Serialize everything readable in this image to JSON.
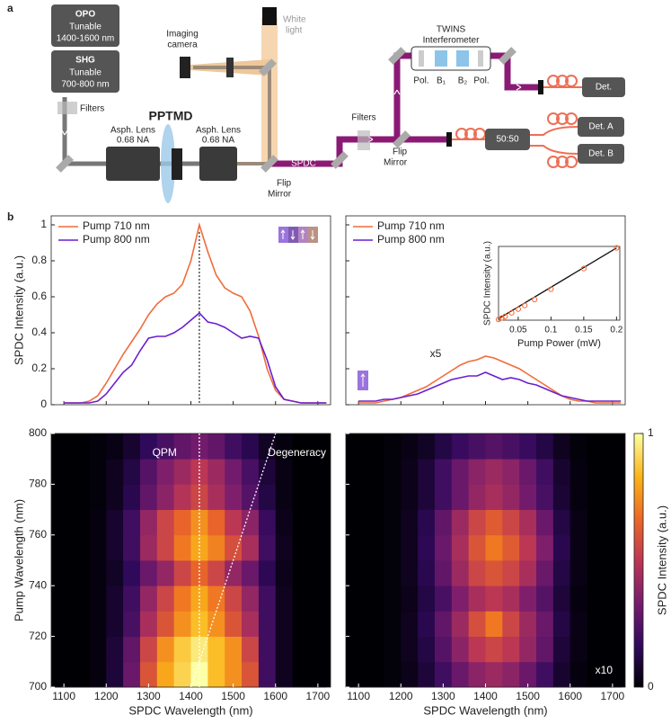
{
  "diagram": {
    "labels": [
      "a",
      "OPO",
      "Tunable",
      "1400-1600 nm",
      "SHG",
      "Tunable",
      "700-800 nm",
      "Filters",
      "Asph. Lens",
      "0.68 NA",
      "PPTMD",
      "Asph. Lens",
      "0.68 NA",
      "Imaging",
      "camera",
      "White",
      "light",
      "Flip",
      "Mirror",
      "SPDC",
      "Filters",
      "Flip",
      "Mirror",
      "TWINS",
      "Interferometer",
      "Pol.",
      "B₁",
      "B₂",
      "Pol.",
      "Det.",
      "50:50",
      "Det. A",
      "Det. B",
      "b"
    ]
  },
  "chart_data": [
    {
      "type": "line",
      "ylabel": "SPDC Intensity (a.u.)",
      "xlim": [
        1070,
        1730
      ],
      "ylim": [
        0,
        1.05
      ],
      "xticks": [
        1100,
        1200,
        1300,
        1400,
        1500,
        1600,
        1700
      ],
      "yticks": [
        0,
        0.2,
        0.4,
        0.6,
        0.8,
        1
      ],
      "x": [
        1100,
        1120,
        1140,
        1160,
        1180,
        1200,
        1220,
        1240,
        1260,
        1280,
        1300,
        1320,
        1340,
        1360,
        1380,
        1400,
        1420,
        1440,
        1460,
        1480,
        1500,
        1520,
        1540,
        1560,
        1580,
        1600,
        1620,
        1640,
        1660,
        1680,
        1700,
        1720
      ],
      "series": [
        {
          "name": "Pump 710 nm",
          "color": "#f26b3a",
          "values": [
            0.01,
            0.01,
            0.01,
            0.02,
            0.05,
            0.12,
            0.2,
            0.28,
            0.35,
            0.42,
            0.5,
            0.56,
            0.6,
            0.62,
            0.67,
            0.8,
            1.0,
            0.85,
            0.72,
            0.65,
            0.62,
            0.6,
            0.52,
            0.38,
            0.2,
            0.08,
            0.03,
            0.02,
            0.01,
            0.01,
            0.01,
            0.01
          ]
        },
        {
          "name": "Pump 800 nm",
          "color": "#6a1fd0",
          "values": [
            0.01,
            0.01,
            0.01,
            0.01,
            0.02,
            0.06,
            0.12,
            0.18,
            0.22,
            0.3,
            0.37,
            0.38,
            0.38,
            0.4,
            0.43,
            0.47,
            0.51,
            0.46,
            0.45,
            0.43,
            0.4,
            0.37,
            0.38,
            0.37,
            0.25,
            0.1,
            0.03,
            0.02,
            0.01,
            0.01,
            0.01,
            0.01
          ]
        }
      ],
      "qpm_line": 1420
    },
    {
      "type": "line",
      "xlim": [
        1070,
        1730
      ],
      "ylim": [
        0,
        1.05
      ],
      "xticks": [
        1100,
        1200,
        1300,
        1400,
        1500,
        1600,
        1700
      ],
      "yticks": [
        0,
        0.2,
        0.4,
        0.6,
        0.8,
        1
      ],
      "x": [
        1100,
        1120,
        1140,
        1160,
        1180,
        1200,
        1220,
        1240,
        1260,
        1280,
        1300,
        1320,
        1340,
        1360,
        1380,
        1400,
        1420,
        1440,
        1460,
        1480,
        1500,
        1520,
        1540,
        1560,
        1580,
        1600,
        1620,
        1640,
        1660,
        1680,
        1700,
        1720
      ],
      "series": [
        {
          "name": "Pump 710 nm",
          "color": "#f26b3a",
          "values": [
            0.01,
            0.01,
            0.01,
            0.02,
            0.03,
            0.04,
            0.06,
            0.08,
            0.1,
            0.13,
            0.16,
            0.19,
            0.22,
            0.24,
            0.25,
            0.27,
            0.26,
            0.24,
            0.22,
            0.2,
            0.17,
            0.14,
            0.11,
            0.08,
            0.05,
            0.03,
            0.02,
            0.02,
            0.01,
            0.01,
            0.01,
            0.01
          ]
        },
        {
          "name": "Pump 800 nm",
          "color": "#6a1fd0",
          "values": [
            0.02,
            0.02,
            0.02,
            0.03,
            0.03,
            0.04,
            0.05,
            0.06,
            0.08,
            0.1,
            0.12,
            0.14,
            0.15,
            0.16,
            0.16,
            0.18,
            0.16,
            0.14,
            0.15,
            0.14,
            0.12,
            0.11,
            0.09,
            0.07,
            0.05,
            0.04,
            0.03,
            0.02,
            0.02,
            0.02,
            0.02,
            0.02
          ]
        }
      ],
      "annotation": "x5"
    },
    {
      "type": "scatter",
      "xlabel": "Pump Power (mW)",
      "ylabel": "SPDC Intensity (a.u.)",
      "xlim": [
        0.02,
        0.205
      ],
      "ylim": [
        0,
        1
      ],
      "xticks": [
        0.05,
        0.1,
        0.15,
        0.2
      ],
      "color": "#f26b3a",
      "x": [
        0.02,
        0.025,
        0.03,
        0.04,
        0.05,
        0.06,
        0.075,
        0.1,
        0.15,
        0.2
      ],
      "values": [
        0.01,
        0.03,
        0.05,
        0.1,
        0.15,
        0.2,
        0.28,
        0.42,
        0.7,
        0.98
      ],
      "fit": {
        "x": [
          0.02,
          0.2
        ],
        "values": [
          0.02,
          0.98
        ]
      }
    },
    {
      "type": "heatmap",
      "xlabel": "SPDC Wavelength (nm)",
      "ylabel": "Pump Wavelength (nm)",
      "xlim": [
        1070,
        1730
      ],
      "ylim": [
        700,
        800
      ],
      "clim": [
        0,
        1
      ],
      "xticks": [
        1100,
        1200,
        1300,
        1400,
        1500,
        1600,
        1700
      ],
      "yticks": [
        700,
        720,
        740,
        760,
        780,
        800
      ],
      "colormap": [
        "#000004",
        "#320a5e",
        "#781c6d",
        "#bc3754",
        "#ed6925",
        "#fbb61a",
        "#fcffa4"
      ],
      "x": [
        1100,
        1140,
        1180,
        1220,
        1260,
        1300,
        1340,
        1380,
        1420,
        1460,
        1500,
        1540,
        1580,
        1620,
        1660,
        1700
      ],
      "y": [
        705,
        715,
        725,
        735,
        745,
        755,
        765,
        775,
        785,
        795
      ],
      "values": [
        [
          0,
          0,
          0.02,
          0.1,
          0.3,
          0.6,
          0.8,
          0.9,
          1.0,
          0.85,
          0.75,
          0.6,
          0.2,
          0.05,
          0,
          0
        ],
        [
          0,
          0,
          0.02,
          0.1,
          0.28,
          0.55,
          0.75,
          0.88,
          0.95,
          0.85,
          0.75,
          0.55,
          0.2,
          0.05,
          0,
          0
        ],
        [
          0,
          0,
          0.02,
          0.08,
          0.22,
          0.45,
          0.6,
          0.75,
          0.85,
          0.75,
          0.6,
          0.45,
          0.2,
          0.05,
          0,
          0
        ],
        [
          0,
          0,
          0.02,
          0.08,
          0.2,
          0.4,
          0.55,
          0.7,
          0.8,
          0.7,
          0.55,
          0.4,
          0.2,
          0.05,
          0,
          0
        ],
        [
          0,
          0,
          0.02,
          0.06,
          0.16,
          0.3,
          0.4,
          0.55,
          0.65,
          0.55,
          0.4,
          0.3,
          0.15,
          0.04,
          0,
          0
        ],
        [
          0,
          0,
          0.02,
          0.08,
          0.2,
          0.42,
          0.55,
          0.7,
          0.8,
          0.72,
          0.58,
          0.45,
          0.2,
          0.05,
          0,
          0
        ],
        [
          0,
          0,
          0.02,
          0.08,
          0.2,
          0.4,
          0.55,
          0.65,
          0.75,
          0.65,
          0.5,
          0.38,
          0.18,
          0.04,
          0,
          0
        ],
        [
          0,
          0,
          0.01,
          0.05,
          0.14,
          0.28,
          0.38,
          0.48,
          0.55,
          0.45,
          0.35,
          0.25,
          0.12,
          0.03,
          0,
          0
        ],
        [
          0,
          0,
          0.01,
          0.05,
          0.12,
          0.25,
          0.35,
          0.42,
          0.5,
          0.42,
          0.32,
          0.22,
          0.1,
          0.03,
          0,
          0
        ],
        [
          0,
          0,
          0.01,
          0.03,
          0.08,
          0.16,
          0.22,
          0.28,
          0.32,
          0.28,
          0.2,
          0.14,
          0.06,
          0.02,
          0,
          0
        ]
      ],
      "qpm_label": "QPM",
      "qpm_line": 1420,
      "degeneracy_label": "Degeneracy",
      "degeneracy": {
        "x": [
          1400,
          1600
        ],
        "y": [
          700,
          800
        ]
      }
    },
    {
      "type": "heatmap",
      "xlabel": "SPDC Wavelength (nm)",
      "xlim": [
        1070,
        1730
      ],
      "ylim": [
        700,
        800
      ],
      "clim": [
        0,
        1
      ],
      "xticks": [
        1100,
        1200,
        1300,
        1400,
        1500,
        1600,
        1700
      ],
      "yticks": [
        700,
        720,
        740,
        760,
        780,
        800
      ],
      "colormap": [
        "#000004",
        "#320a5e",
        "#781c6d",
        "#bc3754",
        "#ed6925",
        "#fbb61a",
        "#fcffa4"
      ],
      "x": [
        1100,
        1140,
        1180,
        1220,
        1260,
        1300,
        1340,
        1380,
        1420,
        1460,
        1500,
        1540,
        1580,
        1620,
        1660,
        1700
      ],
      "y": [
        705,
        715,
        725,
        735,
        745,
        755,
        765,
        775,
        785,
        795
      ],
      "values": [
        [
          0,
          0,
          0.01,
          0.04,
          0.1,
          0.2,
          0.3,
          0.38,
          0.42,
          0.38,
          0.3,
          0.2,
          0.08,
          0.02,
          0,
          0
        ],
        [
          0,
          0,
          0.01,
          0.05,
          0.12,
          0.25,
          0.38,
          0.5,
          0.55,
          0.5,
          0.4,
          0.28,
          0.1,
          0.03,
          0,
          0
        ],
        [
          0,
          0,
          0.01,
          0.05,
          0.14,
          0.28,
          0.42,
          0.58,
          0.7,
          0.55,
          0.42,
          0.3,
          0.12,
          0.03,
          0,
          0
        ],
        [
          0,
          0,
          0.01,
          0.04,
          0.12,
          0.22,
          0.35,
          0.45,
          0.5,
          0.45,
          0.35,
          0.25,
          0.1,
          0.02,
          0,
          0
        ],
        [
          0,
          0,
          0.01,
          0.05,
          0.14,
          0.28,
          0.42,
          0.55,
          0.6,
          0.55,
          0.45,
          0.3,
          0.12,
          0.03,
          0,
          0
        ],
        [
          0,
          0,
          0.01,
          0.05,
          0.15,
          0.3,
          0.45,
          0.6,
          0.7,
          0.62,
          0.5,
          0.35,
          0.14,
          0.03,
          0,
          0
        ],
        [
          0,
          0,
          0.01,
          0.05,
          0.14,
          0.28,
          0.42,
          0.55,
          0.62,
          0.55,
          0.45,
          0.3,
          0.12,
          0.03,
          0,
          0
        ],
        [
          0,
          0,
          0.01,
          0.04,
          0.1,
          0.2,
          0.3,
          0.4,
          0.45,
          0.4,
          0.32,
          0.22,
          0.09,
          0.02,
          0,
          0
        ],
        [
          0,
          0,
          0.01,
          0.04,
          0.1,
          0.2,
          0.3,
          0.38,
          0.42,
          0.38,
          0.3,
          0.2,
          0.08,
          0.02,
          0,
          0
        ],
        [
          0,
          0,
          0.01,
          0.03,
          0.06,
          0.12,
          0.18,
          0.22,
          0.25,
          0.22,
          0.18,
          0.12,
          0.05,
          0.01,
          0,
          0
        ]
      ],
      "annotation": "x10",
      "colorbar": {
        "label": "SPDC Intensity (a.u.)",
        "ticks": [
          0,
          1
        ]
      }
    }
  ]
}
